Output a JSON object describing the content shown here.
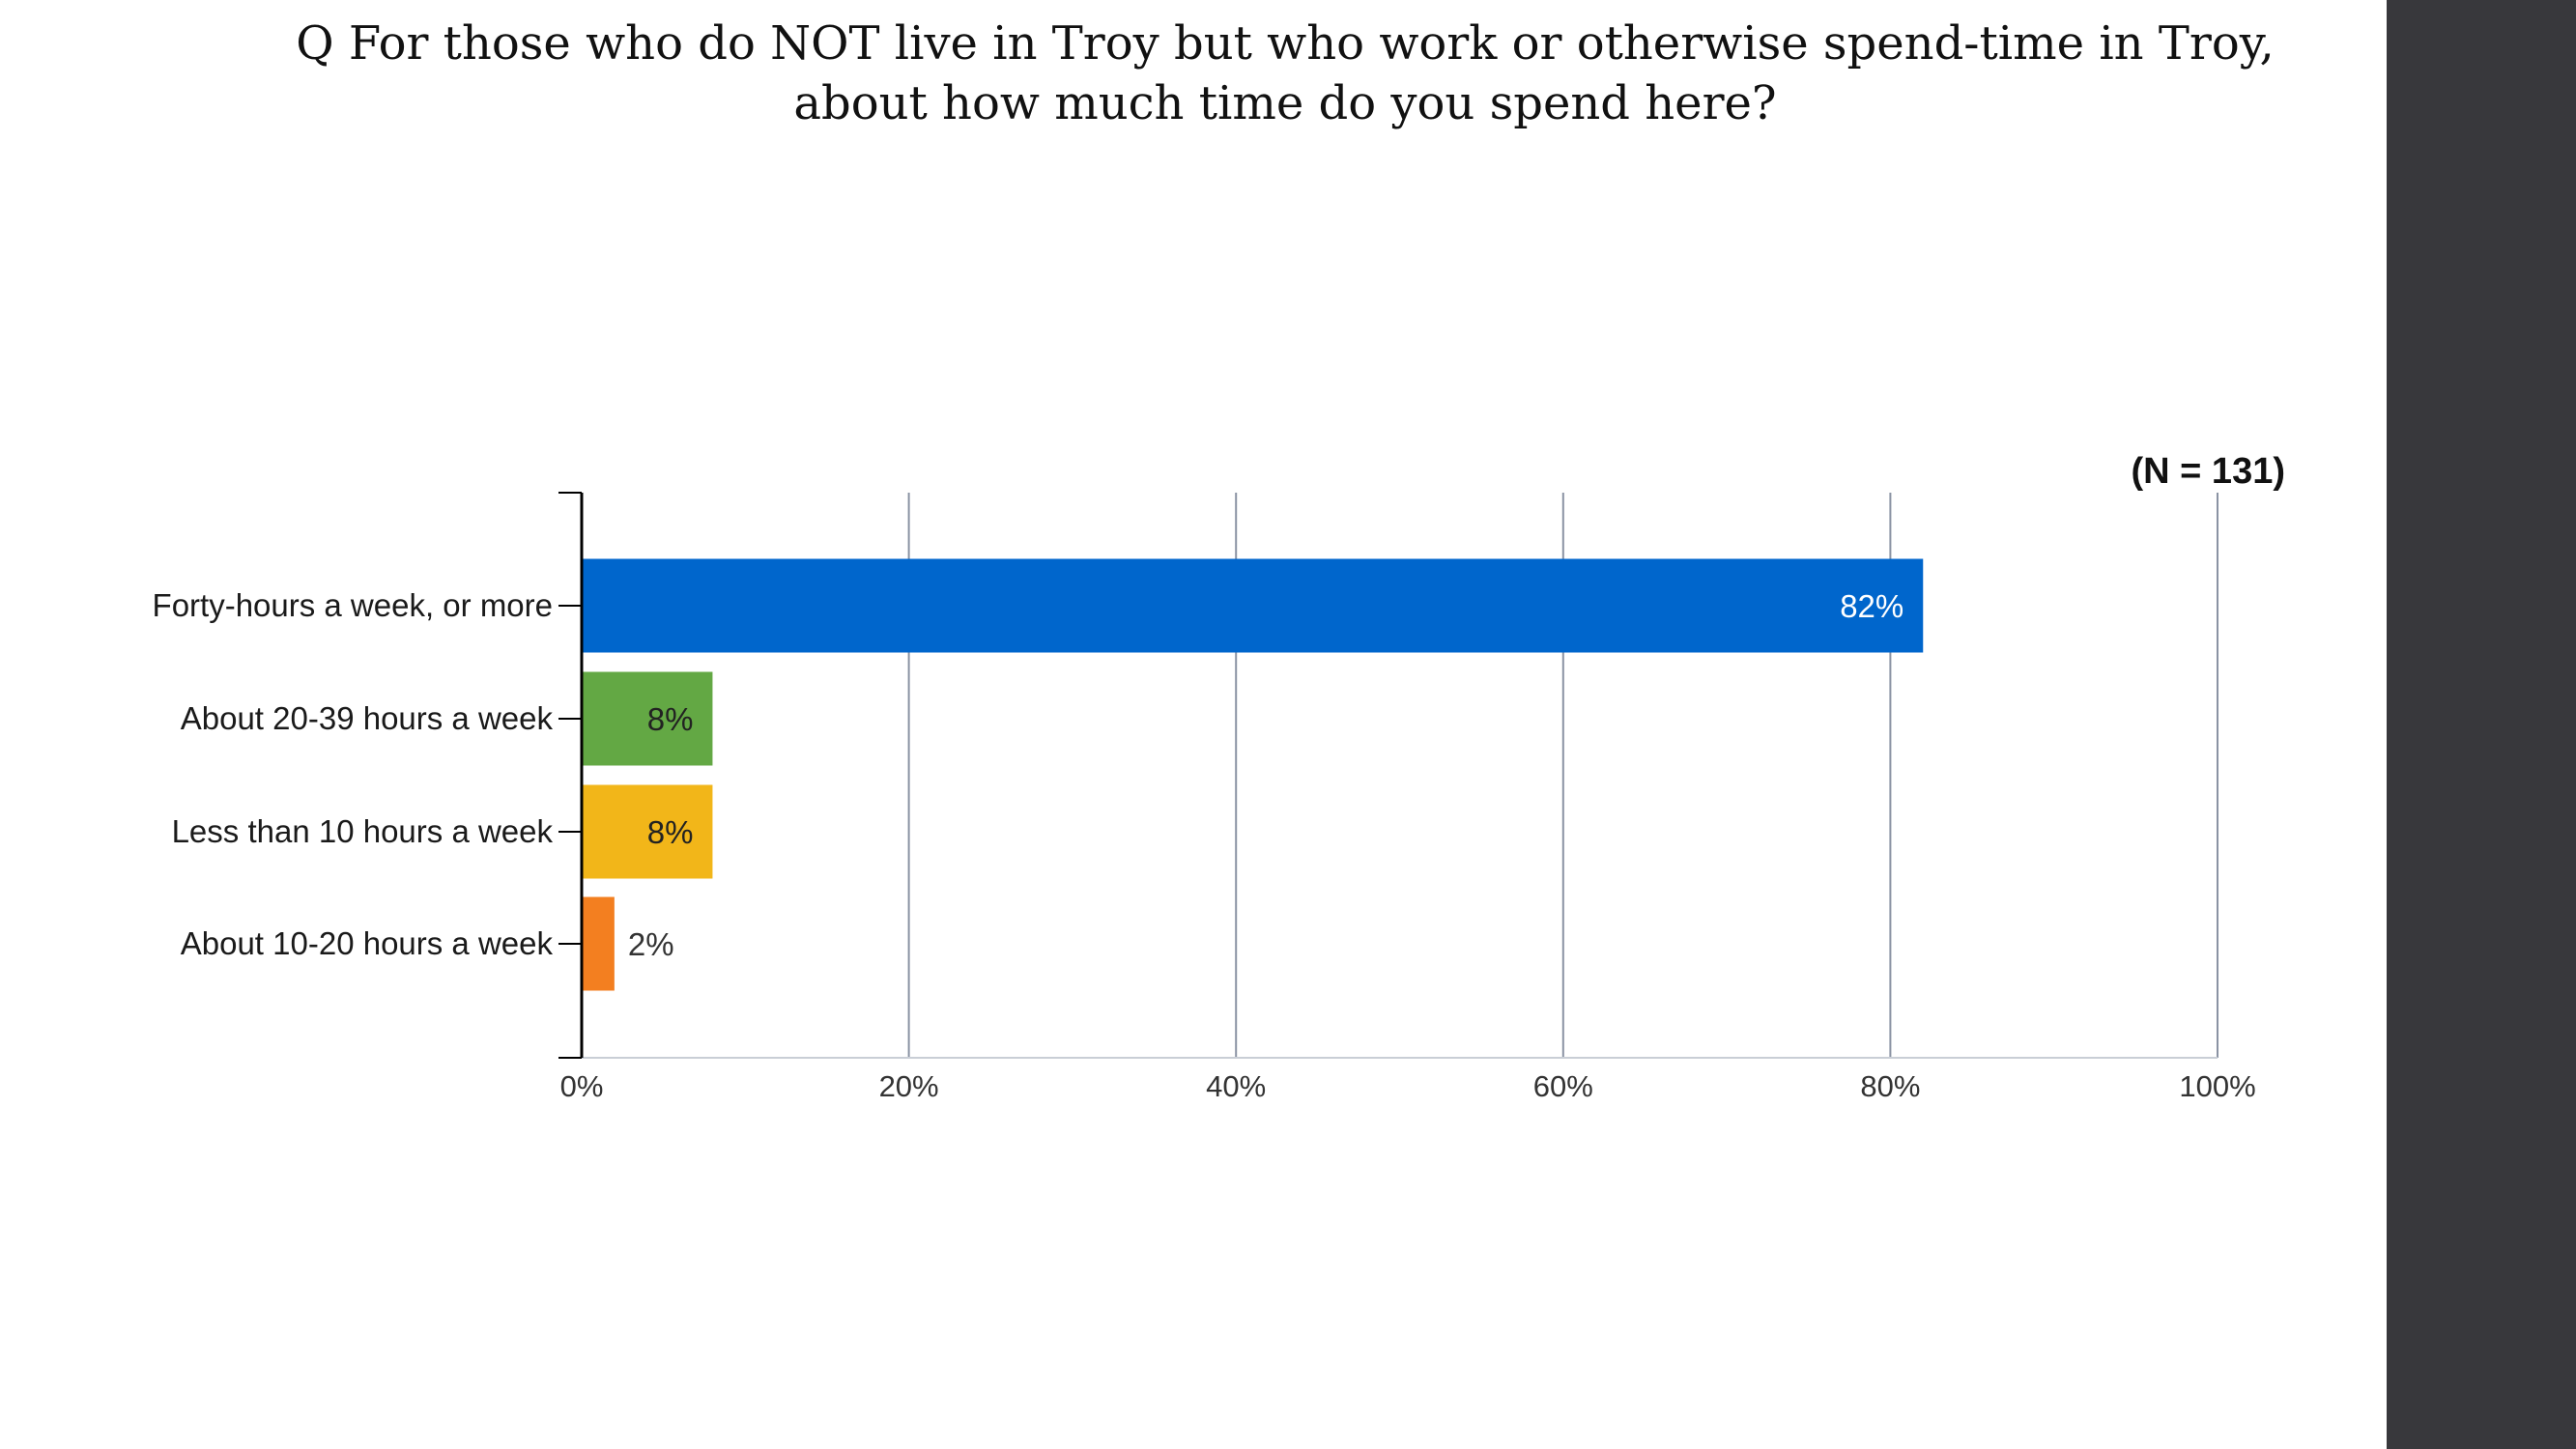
{
  "slide": {
    "title_line1": "Q For those who do NOT live in Troy but who work or otherwise spend-time in Troy,",
    "title_line2": "about how much time do you spend here?"
  },
  "colors": {
    "side_panel": "#38383c",
    "gridline": "#8a93a3",
    "axis": "#000000"
  },
  "chart_data": {
    "type": "bar",
    "orientation": "horizontal",
    "annotation": "(N = 131)",
    "categories": [
      "Forty-hours a week, or more",
      "About 20-39 hours a week",
      "Less than 10 hours a week",
      "About 10-20 hours a week"
    ],
    "values": [
      82,
      8,
      8,
      2
    ],
    "value_labels": [
      "82%",
      "8%",
      "8%",
      "2%"
    ],
    "bar_colors": [
      "#0066cc",
      "#63a844",
      "#f2b619",
      "#f37f20"
    ],
    "value_label_colors": [
      "#ffffff",
      "#222222",
      "#222222",
      "#333333"
    ],
    "xlim": [
      0,
      100
    ],
    "x_ticks": [
      0,
      20,
      40,
      60,
      80,
      100
    ],
    "x_tick_labels": [
      "0%",
      "20%",
      "40%",
      "60%",
      "80%",
      "100%"
    ],
    "grid": true,
    "xlabel": "",
    "ylabel": ""
  }
}
